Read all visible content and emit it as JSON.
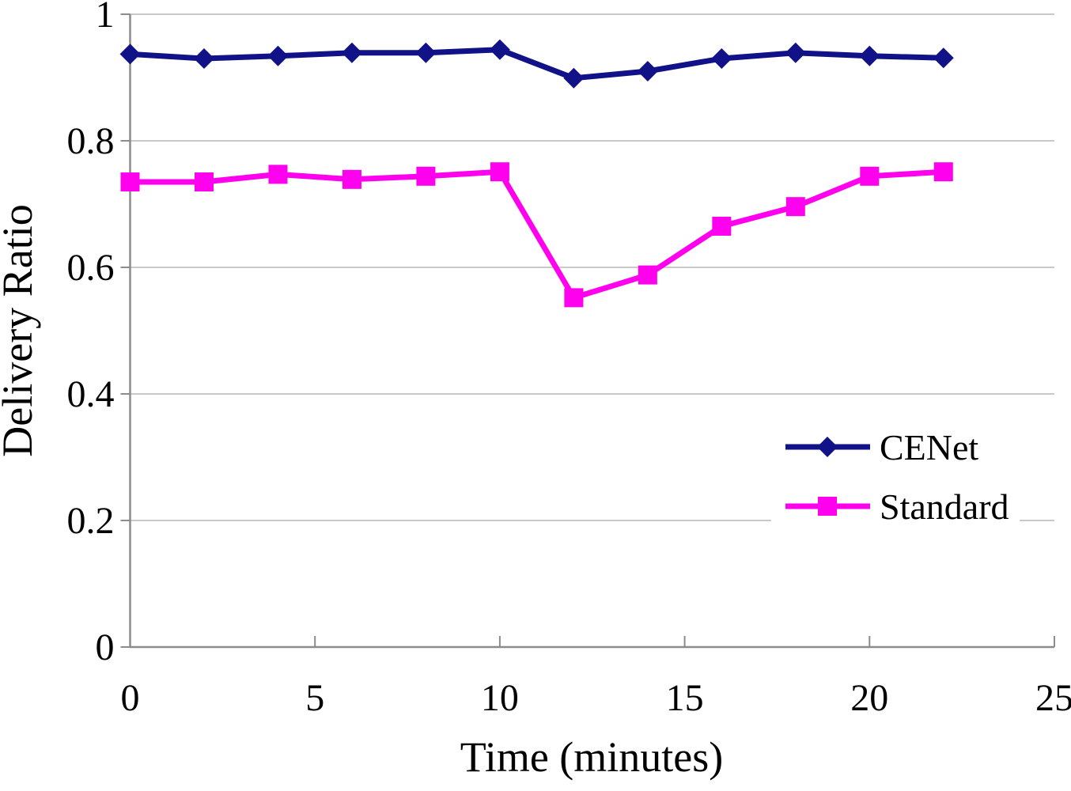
{
  "chart_data": {
    "type": "line",
    "title": "",
    "xlabel": "Time (minutes)",
    "ylabel": "Delivery Ratio",
    "x": [
      0,
      2,
      4,
      6,
      8,
      10,
      12,
      14,
      16,
      18,
      20,
      22
    ],
    "series": [
      {
        "name": "CENet",
        "marker": "diamond",
        "color": "#111188",
        "values": [
          0.937,
          0.93,
          0.934,
          0.939,
          0.939,
          0.944,
          0.899,
          0.91,
          0.93,
          0.939,
          0.934,
          0.931
        ]
      },
      {
        "name": "Standard",
        "marker": "square",
        "color": "#FF00EE",
        "values": [
          0.735,
          0.735,
          0.747,
          0.739,
          0.744,
          0.751,
          0.552,
          0.588,
          0.665,
          0.696,
          0.744,
          0.751
        ]
      }
    ],
    "xlim": [
      0,
      25
    ],
    "ylim": [
      0,
      1
    ],
    "x_ticks": [
      0,
      5,
      10,
      15,
      20,
      25
    ],
    "x_tick_labels": [
      "0",
      "5",
      "10",
      "15",
      "20",
      "25"
    ],
    "y_ticks": [
      0,
      0.2,
      0.4,
      0.6,
      0.8,
      1
    ],
    "y_tick_labels": [
      "0",
      "0.2",
      "0.4",
      "0.6",
      "0.8",
      "1"
    ],
    "grid": "horizontal",
    "legend_position": "inside-right",
    "colors": {
      "gridline": "#C9C9C9",
      "axis": "#8C8C8C",
      "text": "#000000",
      "background": "#FFFFFF"
    }
  }
}
